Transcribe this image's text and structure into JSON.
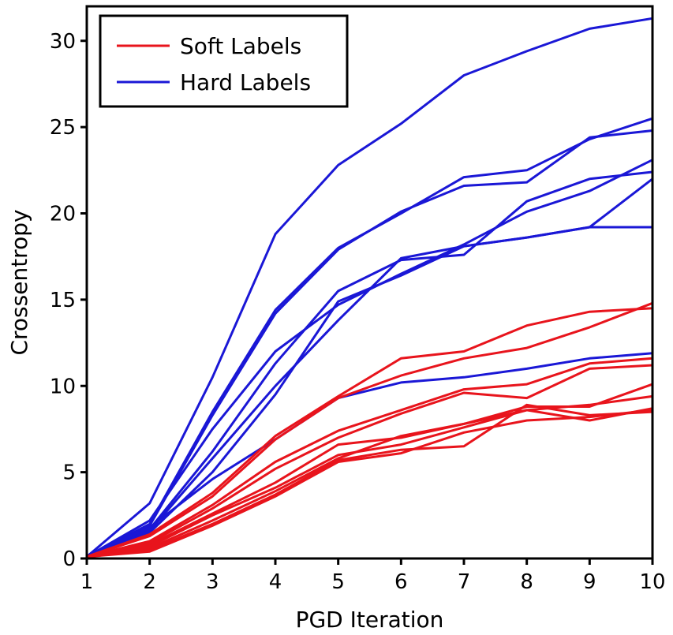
{
  "chart_data": {
    "type": "line",
    "xlabel": "PGD Iteration",
    "ylabel": "Crossentropy",
    "xlim": [
      1,
      10
    ],
    "ylim": [
      0,
      32
    ],
    "xticks": [
      "1",
      "2",
      "3",
      "4",
      "5",
      "6",
      "7",
      "8",
      "9",
      "10"
    ],
    "yticks": [
      "0",
      "5",
      "10",
      "15",
      "20",
      "25",
      "30"
    ],
    "grid": false,
    "legend_position": "top-left",
    "legend": [
      {
        "label": "Soft Labels",
        "color": "#e8141c"
      },
      {
        "label": "Hard Labels",
        "color": "#1a17d6"
      }
    ],
    "x": [
      1,
      2,
      3,
      4,
      5,
      6,
      7,
      8,
      9,
      10
    ],
    "series": [
      {
        "group": "Hard Labels",
        "color": "#1a17d6",
        "values": [
          0.1,
          3.2,
          10.5,
          18.8,
          22.8,
          25.2,
          28.0,
          29.4,
          30.7,
          31.3
        ]
      },
      {
        "group": "Hard Labels",
        "color": "#1a17d6",
        "values": [
          0.1,
          2.0,
          8.5,
          14.4,
          18.0,
          20.0,
          22.1,
          22.5,
          24.3,
          25.5
        ]
      },
      {
        "group": "Hard Labels",
        "color": "#1a17d6",
        "values": [
          0.1,
          1.9,
          8.3,
          14.2,
          17.9,
          20.1,
          21.6,
          21.8,
          24.4,
          24.8
        ]
      },
      {
        "group": "Hard Labels",
        "color": "#1a17d6",
        "values": [
          0.1,
          2.2,
          7.5,
          12.0,
          14.7,
          16.5,
          18.2,
          20.1,
          21.3,
          23.1
        ]
      },
      {
        "group": "Hard Labels",
        "color": "#1a17d6",
        "values": [
          0.1,
          1.7,
          6.2,
          11.3,
          15.5,
          17.3,
          17.6,
          20.7,
          22.0,
          22.4
        ]
      },
      {
        "group": "Hard Labels",
        "color": "#1a17d6",
        "values": [
          0.1,
          1.6,
          5.8,
          10.0,
          13.8,
          17.4,
          18.1,
          18.6,
          19.2,
          22.0
        ]
      },
      {
        "group": "Hard Labels",
        "color": "#1a17d6",
        "values": [
          0.1,
          1.5,
          5.0,
          9.5,
          14.9,
          16.4,
          18.1,
          18.6,
          19.2,
          19.2
        ]
      },
      {
        "group": "Hard Labels",
        "color": "#1a17d6",
        "values": [
          0.1,
          1.8,
          4.6,
          6.9,
          9.3,
          10.2,
          10.5,
          11.0,
          11.6,
          11.9
        ]
      },
      {
        "group": "Soft Labels",
        "color": "#e8141c",
        "values": [
          0.1,
          1.4,
          3.8,
          7.1,
          9.4,
          11.6,
          12.0,
          13.5,
          14.3,
          14.5
        ]
      },
      {
        "group": "Soft Labels",
        "color": "#e8141c",
        "values": [
          0.1,
          1.3,
          3.6,
          6.9,
          9.3,
          10.6,
          11.6,
          12.2,
          13.4,
          14.8
        ]
      },
      {
        "group": "Soft Labels",
        "color": "#e8141c",
        "values": [
          0.1,
          1.0,
          3.1,
          5.6,
          7.4,
          8.6,
          9.8,
          10.1,
          11.3,
          11.6
        ]
      },
      {
        "group": "Soft Labels",
        "color": "#e8141c",
        "values": [
          0.1,
          0.9,
          2.9,
          5.2,
          7.0,
          8.4,
          9.6,
          9.3,
          11.0,
          11.2
        ]
      },
      {
        "group": "Soft Labels",
        "color": "#e8141c",
        "values": [
          0.1,
          0.8,
          2.6,
          4.4,
          6.6,
          7.0,
          7.8,
          8.8,
          8.8,
          10.1
        ]
      },
      {
        "group": "Soft Labels",
        "color": "#e8141c",
        "values": [
          0.1,
          0.7,
          2.5,
          4.1,
          6.0,
          6.6,
          7.6,
          8.6,
          8.9,
          9.4
        ]
      },
      {
        "group": "Soft Labels",
        "color": "#e8141c",
        "values": [
          0.1,
          0.6,
          2.2,
          3.9,
          5.8,
          7.1,
          7.8,
          8.6,
          8.0,
          8.7
        ]
      },
      {
        "group": "Soft Labels",
        "color": "#e8141c",
        "values": [
          0.1,
          0.5,
          2.0,
          3.7,
          5.7,
          6.3,
          6.5,
          8.9,
          8.3,
          8.5
        ]
      },
      {
        "group": "Soft Labels",
        "color": "#e8141c",
        "values": [
          0.1,
          0.4,
          1.9,
          3.6,
          5.6,
          6.1,
          7.3,
          8.0,
          8.2,
          8.6
        ]
      }
    ]
  }
}
